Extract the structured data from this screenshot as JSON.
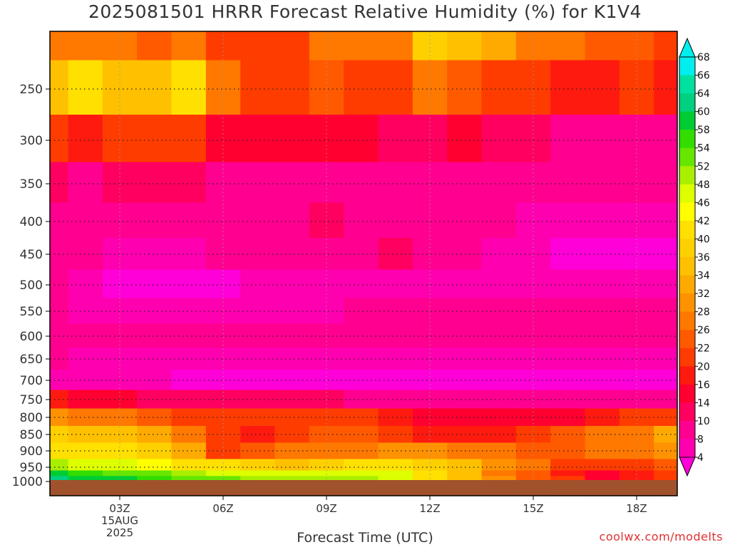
{
  "chart_data": {
    "type": "heatmap",
    "title": "2025081501 HRRR Forecast Relative Humidity (%) for K1V4",
    "xlabel": "Forecast Time (UTC)",
    "ylabel": "",
    "x_ticks": [
      "03Z",
      "06Z",
      "09Z",
      "12Z",
      "15Z",
      "18Z"
    ],
    "x_date_label": [
      "15AUG",
      "2025"
    ],
    "y_ticks": [
      250,
      300,
      350,
      400,
      450,
      500,
      550,
      600,
      650,
      700,
      750,
      800,
      850,
      900,
      950,
      1000
    ],
    "x_hours": [
      1,
      2,
      3,
      4,
      5,
      6,
      7,
      8,
      9,
      10,
      11,
      12,
      13,
      14,
      15,
      16,
      17,
      18,
      19
    ],
    "y_levels": [
      200,
      250,
      300,
      350,
      400,
      450,
      500,
      550,
      600,
      650,
      700,
      750,
      800,
      850,
      900,
      950,
      975,
      990
    ],
    "values": [
      [
        30,
        28,
        30,
        26,
        30,
        24,
        24,
        24,
        30,
        28,
        30,
        40,
        38,
        34,
        30,
        28,
        26,
        26,
        22
      ],
      [
        38,
        42,
        36,
        36,
        44,
        30,
        22,
        24,
        26,
        24,
        24,
        28,
        26,
        24,
        22,
        20,
        20,
        22,
        20
      ],
      [
        22,
        20,
        22,
        24,
        22,
        18,
        16,
        18,
        16,
        16,
        14,
        14,
        16,
        14,
        14,
        12,
        12,
        12,
        12
      ],
      [
        14,
        12,
        14,
        14,
        14,
        12,
        10,
        10,
        10,
        10,
        10,
        10,
        10,
        10,
        10,
        10,
        10,
        10,
        10
      ],
      [
        10,
        10,
        10,
        10,
        10,
        10,
        10,
        12,
        14,
        12,
        12,
        10,
        10,
        10,
        8,
        8,
        8,
        8,
        8
      ],
      [
        10,
        10,
        8,
        8,
        8,
        10,
        10,
        10,
        10,
        12,
        14,
        12,
        10,
        8,
        8,
        6,
        6,
        6,
        6
      ],
      [
        10,
        8,
        6,
        6,
        6,
        6,
        8,
        8,
        8,
        8,
        8,
        8,
        8,
        8,
        8,
        8,
        8,
        8,
        8
      ],
      [
        10,
        8,
        8,
        8,
        8,
        8,
        8,
        8,
        8,
        10,
        10,
        10,
        10,
        10,
        10,
        10,
        10,
        10,
        10
      ],
      [
        12,
        10,
        10,
        10,
        10,
        10,
        10,
        10,
        10,
        10,
        10,
        10,
        10,
        10,
        10,
        10,
        10,
        10,
        10
      ],
      [
        10,
        8,
        8,
        8,
        8,
        8,
        8,
        8,
        8,
        8,
        8,
        8,
        8,
        8,
        8,
        8,
        8,
        8,
        8
      ],
      [
        8,
        8,
        8,
        8,
        6,
        6,
        6,
        6,
        6,
        6,
        6,
        6,
        6,
        6,
        6,
        6,
        6,
        6,
        6
      ],
      [
        20,
        18,
        16,
        14,
        14,
        14,
        14,
        14,
        14,
        12,
        12,
        10,
        10,
        10,
        10,
        10,
        10,
        10,
        12
      ],
      [
        32,
        30,
        28,
        26,
        24,
        22,
        22,
        22,
        24,
        22,
        20,
        18,
        16,
        16,
        16,
        18,
        20,
        22,
        24
      ],
      [
        40,
        38,
        36,
        34,
        30,
        22,
        20,
        24,
        26,
        26,
        24,
        20,
        20,
        20,
        24,
        26,
        28,
        30,
        34
      ],
      [
        42,
        44,
        42,
        40,
        34,
        24,
        26,
        28,
        28,
        30,
        32,
        32,
        30,
        28,
        26,
        26,
        28,
        30,
        32
      ],
      [
        52,
        50,
        48,
        46,
        44,
        42,
        40,
        38,
        40,
        42,
        44,
        40,
        36,
        32,
        28,
        24,
        22,
        24,
        26
      ],
      [
        60,
        58,
        56,
        54,
        52,
        50,
        48,
        48,
        50,
        50,
        48,
        42,
        36,
        30,
        26,
        20,
        18,
        20,
        22
      ],
      [
        64,
        62,
        60,
        58,
        56,
        54,
        52,
        52,
        52,
        52,
        50,
        44,
        38,
        32,
        26,
        22,
        18,
        20,
        22
      ]
    ],
    "colorbar": {
      "labels": [
        "68",
        "66",
        "64",
        "60",
        "58",
        "54",
        "52",
        "48",
        "46",
        "42",
        "40",
        "36",
        "34",
        "32",
        "28",
        "26",
        "22",
        "20",
        "16",
        "14",
        "10",
        "8",
        "4"
      ],
      "colors": [
        "#00eeee",
        "#00e0a0",
        "#00d080",
        "#00cc33",
        "#33dd00",
        "#66e600",
        "#aaee00",
        "#ddff00",
        "#ffff00",
        "#ffe000",
        "#ffd000",
        "#ffc000",
        "#ffaa00",
        "#ff9200",
        "#ff7800",
        "#ff5a00",
        "#ff3c00",
        "#ff1a10",
        "#ff0030",
        "#ff0060",
        "#ff0090",
        "#ff00b0",
        "#ff00d8"
      ]
    },
    "ground_color": "#a0522d",
    "grid": true
  },
  "credit": "coolwx.com/modelts"
}
